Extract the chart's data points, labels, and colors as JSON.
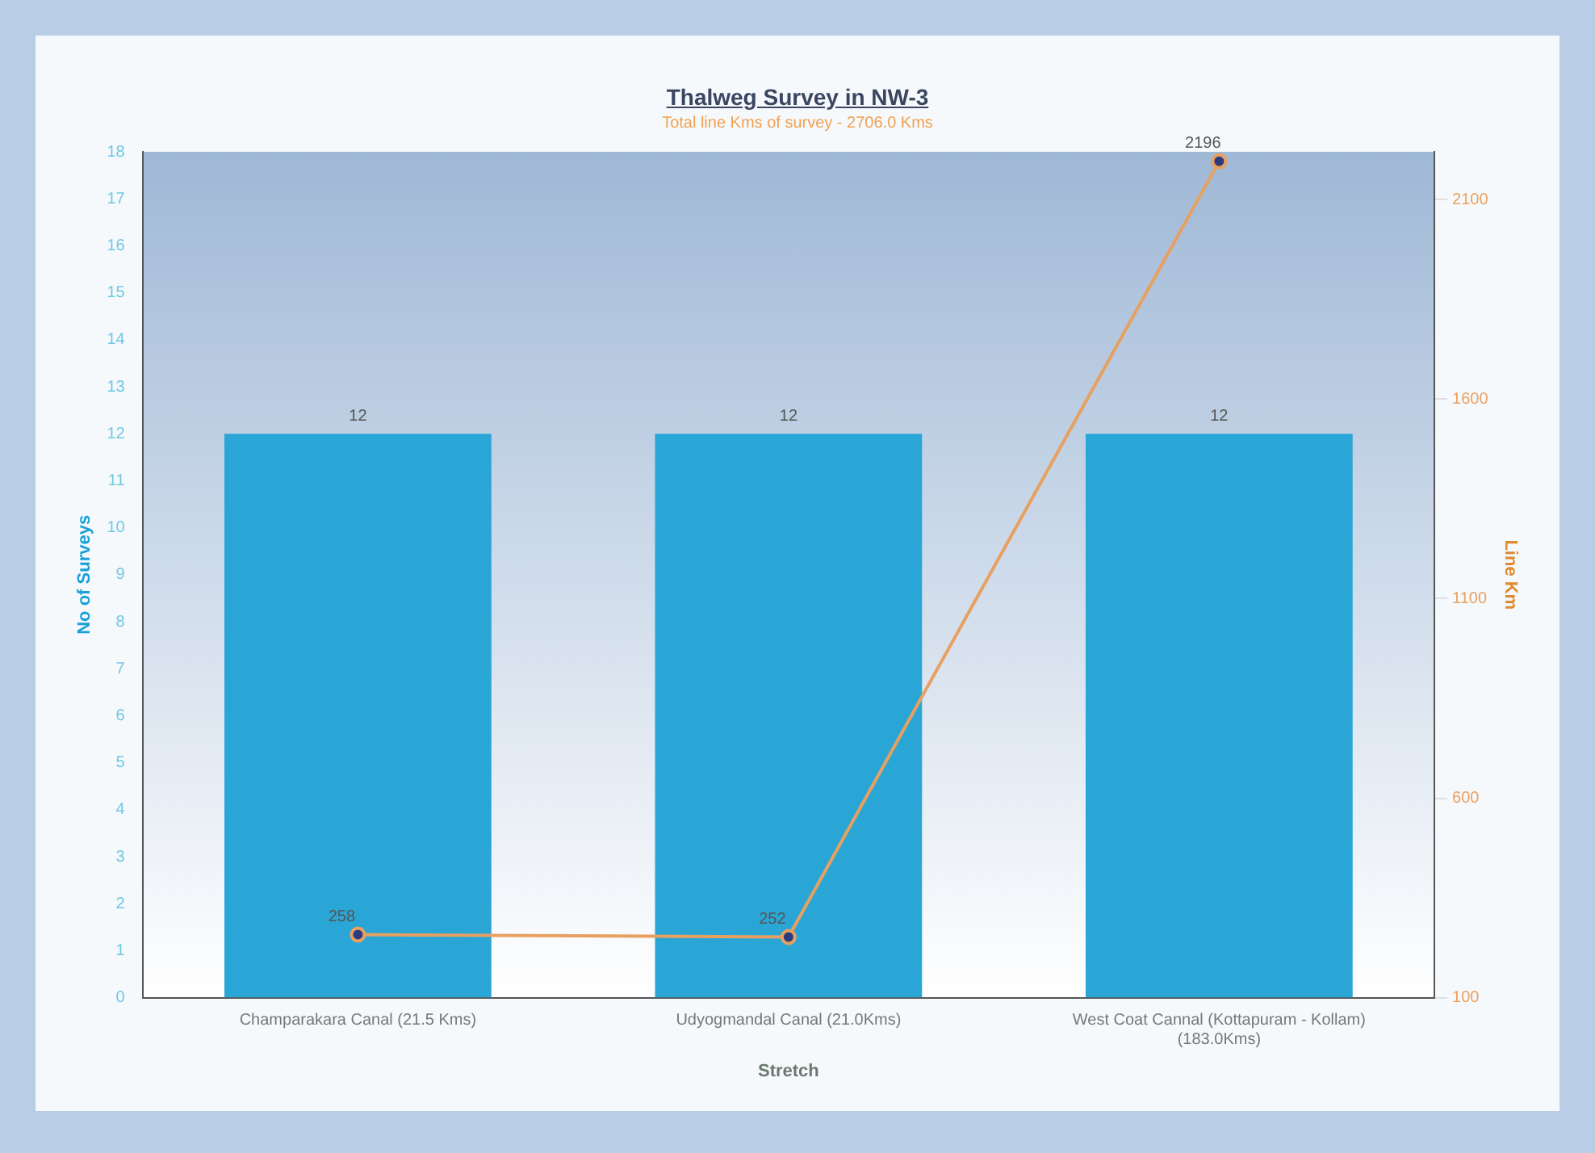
{
  "chart_data": {
    "type": "bar",
    "title": "Thalweg Survey  in NW-3",
    "subtitle": "Total line Kms of survey - 2706.0 Kms",
    "xlabel": "Stretch",
    "ylabel": "No of Surveys",
    "y2label": "Line Km",
    "categories": [
      "Champarakara Canal (21.5 Kms)",
      "Udyogmandal Canal (21.0Kms)",
      "West Coat Cannal (Kottapuram - Kollam) (183.0Kms)"
    ],
    "series": [
      {
        "color": "#2aa6d6",
        "values": [
          12,
          12,
          12
        ]
      },
      {
        "type": "line",
        "axis": "y2",
        "color": "#e8a060",
        "values": [
          258,
          252,
          2196
        ]
      }
    ],
    "ylim": [
      0,
      18
    ],
    "yticks": [
      0,
      1,
      2,
      3,
      4,
      5,
      6,
      7,
      8,
      9,
      10,
      11,
      12,
      13,
      14,
      15,
      16,
      17,
      18
    ],
    "y2lim": [
      100,
      2220
    ],
    "y2ticks": [
      100,
      600,
      1100,
      1600,
      2100
    ],
    "data_labels": true,
    "grid": false,
    "legend": false,
    "marker": "circle",
    "line_style": "solid"
  }
}
